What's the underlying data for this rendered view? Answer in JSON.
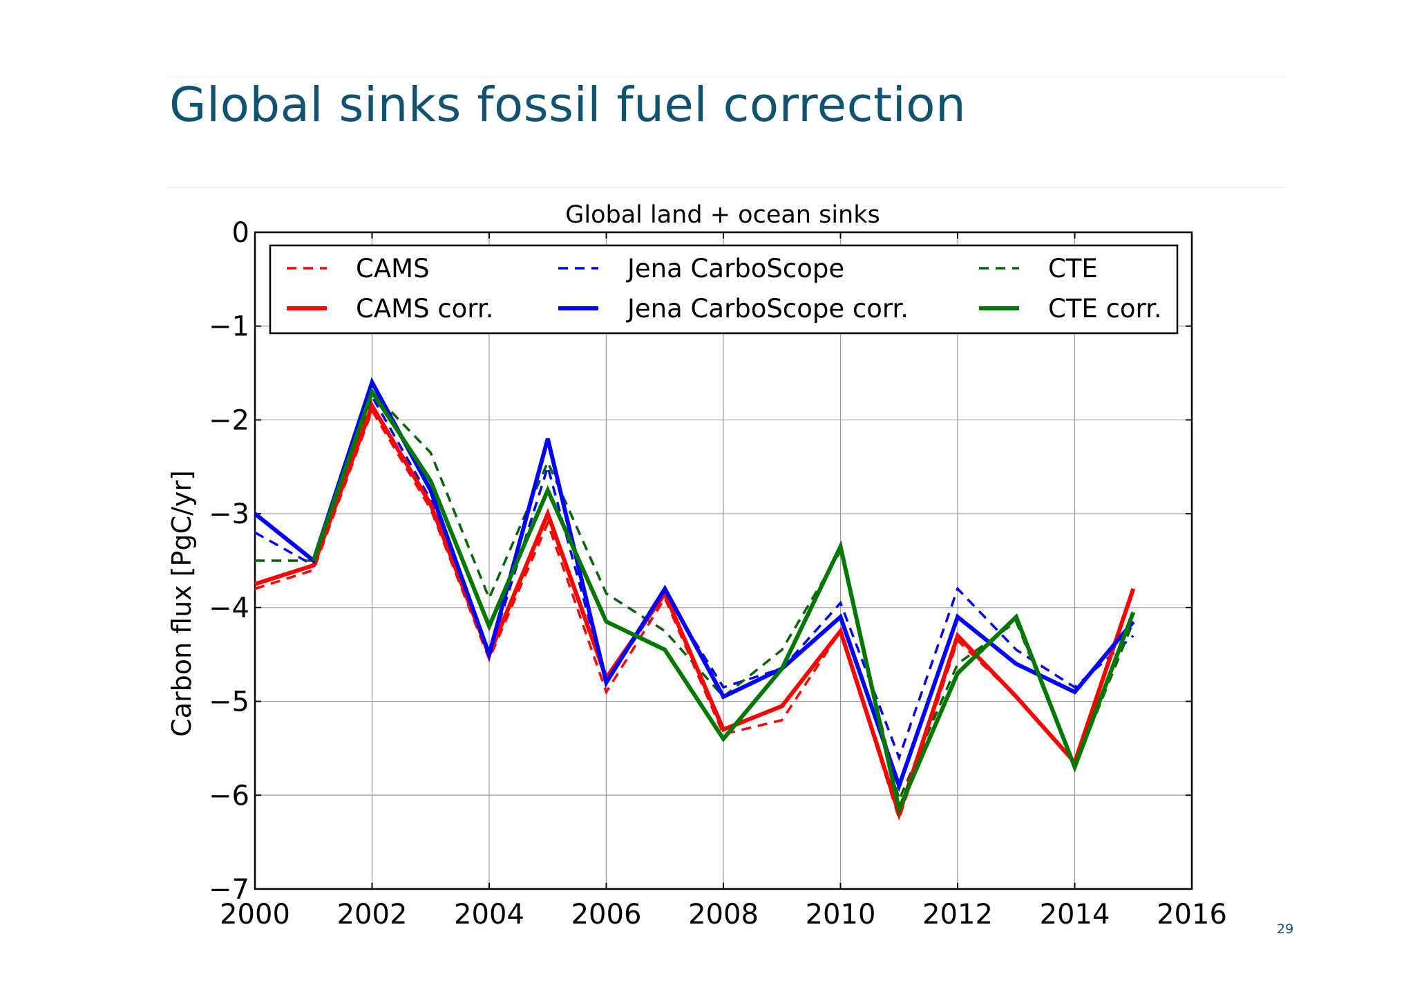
{
  "slide": {
    "title": "Global sinks fossil fuel correction",
    "page_number": "29",
    "title_color": "#0f5370"
  },
  "chart_data": {
    "type": "line",
    "title": "Global land + ocean sinks",
    "xlabel": "",
    "ylabel": "Carbon flux [PgC/yr]",
    "xlim": [
      2000,
      2016
    ],
    "ylim": [
      -7,
      0
    ],
    "x_ticks": [
      2000,
      2002,
      2004,
      2006,
      2008,
      2010,
      2012,
      2014,
      2016
    ],
    "y_ticks": [
      0,
      -1,
      -2,
      -3,
      -4,
      -5,
      -6,
      -7
    ],
    "y_tick_labels": [
      "0",
      "−1",
      "−2",
      "−3",
      "−4",
      "−5",
      "−6",
      "−7"
    ],
    "grid": true,
    "legend_position": "top",
    "x": [
      2000,
      2001,
      2002,
      2003,
      2004,
      2005,
      2006,
      2007,
      2008,
      2009,
      2010,
      2011,
      2012,
      2013,
      2014,
      2015
    ],
    "series": [
      {
        "name": "CAMS",
        "color": "#ff0000",
        "style": "dashed",
        "values": [
          -3.8,
          -3.6,
          -1.9,
          -2.95,
          -4.55,
          -3.1,
          -4.9,
          -3.9,
          -5.35,
          -5.2,
          -4.25,
          -6.25,
          -4.35,
          -4.95,
          -5.65,
          -3.8
        ]
      },
      {
        "name": "Jena CarboScope",
        "color": "#0000ff",
        "style": "dashed",
        "values": [
          -3.2,
          -3.55,
          -1.75,
          -2.85,
          -4.5,
          -2.5,
          -4.8,
          -3.85,
          -4.85,
          -4.65,
          -3.95,
          -5.6,
          -3.8,
          -4.45,
          -4.85,
          -4.3
        ]
      },
      {
        "name": "CTE",
        "color": "#006400",
        "style": "dashed",
        "values": [
          -3.5,
          -3.5,
          -1.7,
          -2.35,
          -3.9,
          -2.45,
          -3.85,
          -4.25,
          -4.95,
          -4.45,
          -3.4,
          -6.05,
          -4.6,
          -4.15,
          -5.7,
          -4.15
        ]
      },
      {
        "name": "CAMS corr.",
        "color": "#ff0000",
        "style": "solid",
        "values": [
          -3.75,
          -3.55,
          -1.85,
          -2.9,
          -4.5,
          -3.0,
          -4.75,
          -3.85,
          -5.3,
          -5.05,
          -4.25,
          -6.2,
          -4.3,
          -4.95,
          -5.65,
          -3.8
        ]
      },
      {
        "name": "Jena CarboScope corr.",
        "color": "#0000ff",
        "style": "solid",
        "values": [
          -3.0,
          -3.5,
          -1.6,
          -2.75,
          -4.5,
          -2.2,
          -4.8,
          -3.8,
          -4.95,
          -4.65,
          -4.1,
          -5.9,
          -4.1,
          -4.6,
          -4.9,
          -4.15
        ]
      },
      {
        "name": "CTE corr.",
        "color": "#007800",
        "style": "solid",
        "values": [
          null,
          -3.5,
          -1.7,
          -2.65,
          -4.2,
          -2.75,
          -4.15,
          -4.45,
          -5.4,
          -4.65,
          -3.35,
          -6.15,
          -4.7,
          -4.1,
          -5.7,
          -4.05
        ]
      }
    ],
    "legend_rows": [
      [
        "CAMS",
        "Jena CarboScope",
        "CTE"
      ],
      [
        "CAMS corr.",
        "Jena CarboScope corr.",
        "CTE corr."
      ]
    ]
  }
}
